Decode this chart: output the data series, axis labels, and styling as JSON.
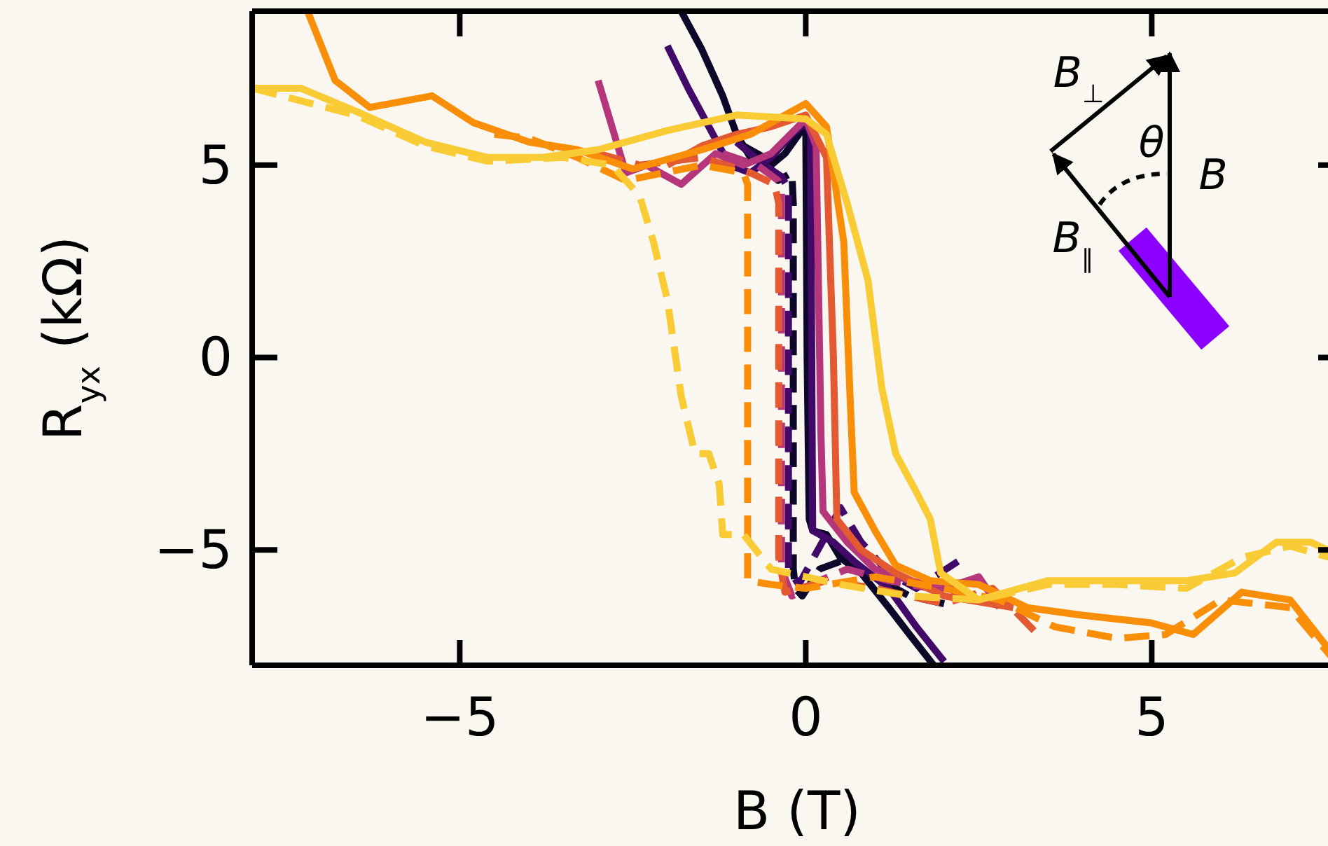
{
  "chart_data": {
    "type": "line",
    "xlabel": "B (T)",
    "ylabel": "R$_{yx}$ (kΩ)",
    "xlim": [
      -8,
      7.77
    ],
    "ylim": [
      -8,
      9
    ],
    "xticks": [
      {
        "value": -5,
        "label": "−5"
      },
      0,
      5
    ],
    "yticks": [
      {
        "value": -5,
        "label": "−5"
      },
      0,
      5
    ],
    "annotations": [
      "B$_{⊥}$",
      "θ",
      "B",
      "B$_{∥}$"
    ],
    "series": [
      {
        "color": "#0d0829",
        "line_style": "solid",
        "x": [
          -1.8,
          -1.5,
          -1.2,
          -1.0,
          -0.8,
          -0.5,
          -0.3,
          -0.1,
          0.0,
          0.02,
          0.05,
          0.1,
          0.3,
          0.5,
          0.8,
          1.2,
          1.5,
          1.85
        ],
        "values": [
          9,
          8,
          6.8,
          5.8,
          5.2,
          5.0,
          5.3,
          5.8,
          6.2,
          0,
          -4.2,
          -4.5,
          -4.6,
          -5.2,
          -5.6,
          -6.5,
          -7.2,
          -8
        ]
      },
      {
        "color": "#0d0829",
        "line_style": "dashed",
        "x": [
          -0.9,
          -0.6,
          -0.4,
          -0.2,
          -0.18,
          -0.18,
          -0.15,
          -0.05,
          0.2,
          0.5,
          1.0,
          1.5,
          2.0
        ],
        "values": [
          5.5,
          5.2,
          4.6,
          4.8,
          4,
          -5.5,
          -6.0,
          -6.2,
          -5.5,
          -5.3,
          -5.7,
          -6.2,
          -6.4
        ]
      },
      {
        "color": "#420a68",
        "line_style": "solid",
        "x": [
          -2.0,
          -1.7,
          -1.4,
          -1.1,
          -0.8,
          -0.5,
          -0.2,
          0,
          0.07,
          0.1,
          0.4,
          0.7,
          1.2,
          1.6,
          2.0
        ],
        "values": [
          8.1,
          7,
          6,
          5.0,
          4.8,
          5.2,
          5.8,
          6.1,
          5.8,
          -4.5,
          -4.8,
          -5.3,
          -6.0,
          -7,
          -7.9
        ]
      },
      {
        "color": "#420a68",
        "line_style": "dashed",
        "x": [
          -1.0,
          -0.6,
          -0.35,
          -0.25,
          -0.25,
          -0.1,
          0.3,
          0.5,
          0.8,
          1.2,
          1.6,
          2.2
        ],
        "values": [
          5.6,
          5.0,
          4.7,
          4.4,
          -5.5,
          -5.9,
          -4.6,
          -3.9,
          -4.8,
          -5.6,
          -6,
          -5.3
        ]
      },
      {
        "color": "#b5367a",
        "line_style": "solid",
        "x": [
          -3.0,
          -2.6,
          -2.3,
          -1.8,
          -1.3,
          -0.9,
          -0.5,
          0,
          0.15,
          0.22,
          0.25,
          0.6,
          1.0,
          1.5,
          2.0,
          2.5,
          2.8
        ],
        "values": [
          7.2,
          4.8,
          5.0,
          4.5,
          5.3,
          5.0,
          5.3,
          6.2,
          5.5,
          -2,
          -4.0,
          -4.8,
          -5.5,
          -5.8,
          -6.0,
          -5.7,
          -6.5
        ]
      },
      {
        "color": "#b5367a",
        "line_style": "dashed",
        "x": [
          -1.2,
          -0.7,
          -0.4,
          -0.35,
          -0.35,
          -0.2,
          0.2,
          0.6,
          1.2,
          1.8,
          2.5,
          3.0
        ],
        "values": [
          5.3,
          5.0,
          4.6,
          4.4,
          -5.5,
          -6.2,
          -5.8,
          -5.5,
          -5.8,
          -6.0,
          -6.2,
          -6.4
        ]
      },
      {
        "color": "#e35932",
        "line_style": "solid",
        "x": [
          -2.0,
          -1.5,
          -1.0,
          -0.5,
          0,
          0.3,
          0.4,
          0.45,
          0.8,
          1.3,
          2.0,
          3.0
        ],
        "values": [
          5.0,
          5.5,
          5.8,
          6.0,
          6.3,
          5.2,
          0,
          -4.2,
          -5.0,
          -5.6,
          -6.2,
          -6.5
        ]
      },
      {
        "color": "#e35932",
        "line_style": "dashed",
        "x": [
          -3.0,
          -2.4,
          -1.5,
          -0.8,
          -0.45,
          -0.39,
          -0.39,
          -0.3,
          0.3,
          1.0,
          2.0,
          2.7,
          3.3
        ],
        "values": [
          5.3,
          5.0,
          5.2,
          4.8,
          4.5,
          4.0,
          -5.2,
          -6.1,
          -5.8,
          -6.0,
          -6.4,
          -6.0,
          -7.1
        ]
      },
      {
        "color": "#f98e09",
        "line_style": "solid",
        "x": [
          -7.2,
          -6.8,
          -6.3,
          -5.4,
          -4.8,
          -4,
          -3.3,
          -2.5,
          -1.5,
          -0.8,
          -0.3,
          0,
          0.3,
          0.55,
          0.64,
          0.7,
          1.0,
          1.3,
          1.8,
          2.5,
          3.2,
          4.0,
          5.0,
          5.6,
          6.3,
          7.0,
          7.7
        ],
        "values": [
          9,
          7.2,
          6.5,
          6.8,
          6.1,
          5.6,
          5.4,
          4.9,
          5.4,
          5.8,
          6.3,
          6.6,
          6.0,
          3,
          -1,
          -3.5,
          -4.5,
          -5.4,
          -5.8,
          -5.9,
          -6.5,
          -6.7,
          -6.9,
          -7.2,
          -6.1,
          -6.3,
          -7.9
        ]
      },
      {
        "color": "#f98e09",
        "line_style": "dashed",
        "x": [
          -4.5,
          -4,
          -3.3,
          -2.6,
          -1.5,
          -0.9,
          -0.84,
          -0.84,
          -0.5,
          0,
          1.0,
          2.0,
          2.8,
          3.6,
          4.5,
          5.2,
          6.0,
          7.0,
          7.7
        ],
        "values": [
          5.8,
          5.7,
          5.2,
          4.6,
          5.0,
          4.8,
          4.5,
          -5.8,
          -5.9,
          -6.0,
          -5.7,
          -6.0,
          -6.3,
          -7.0,
          -7.3,
          -7.2,
          -6.3,
          -6.5,
          -8.0
        ]
      },
      {
        "color": "#f9cb35",
        "line_style": "solid",
        "x": [
          -8,
          -7.3,
          -6.5,
          -5.5,
          -4.6,
          -3.8,
          -3,
          -2,
          -1,
          0,
          0.3,
          0.6,
          0.9,
          1.1,
          1.3,
          1.6,
          1.8,
          1.95,
          2.5,
          3.5,
          4.5,
          5.5,
          6.2,
          6.8,
          7.3,
          7.77
        ],
        "values": [
          7.0,
          7.0,
          6.4,
          5.6,
          5.2,
          5.2,
          5.4,
          5.9,
          6.3,
          6.2,
          5.8,
          4.0,
          2.0,
          -0.8,
          -2.5,
          -3.5,
          -4.2,
          -5.6,
          -6.3,
          -5.8,
          -5.8,
          -5.8,
          -5.6,
          -4.8,
          -4.8,
          -5.2
        ]
      },
      {
        "color": "#f9cb35",
        "line_style": "dashed",
        "x": [
          -8,
          -6.5,
          -5.5,
          -4.6,
          -3.5,
          -2.8,
          -2.4,
          -2.2,
          -2.0,
          -1.8,
          -1.6,
          -1.4,
          -1.25,
          -1.2,
          -0.9,
          -0.5,
          0,
          0.5,
          1.5,
          2.5,
          3.5,
          4.5,
          5.5,
          6.3,
          7.0,
          7.77
        ],
        "values": [
          7.0,
          6.3,
          5.5,
          5.1,
          5.2,
          5.0,
          4.2,
          3.0,
          1.5,
          -1.0,
          -2.5,
          -2.5,
          -3.3,
          -4.6,
          -4.6,
          -5.5,
          -5.7,
          -5.9,
          -6.2,
          -6.3,
          -5.9,
          -5.9,
          -6.0,
          -5.2,
          -4.9,
          -5.3
        ]
      }
    ]
  }
}
